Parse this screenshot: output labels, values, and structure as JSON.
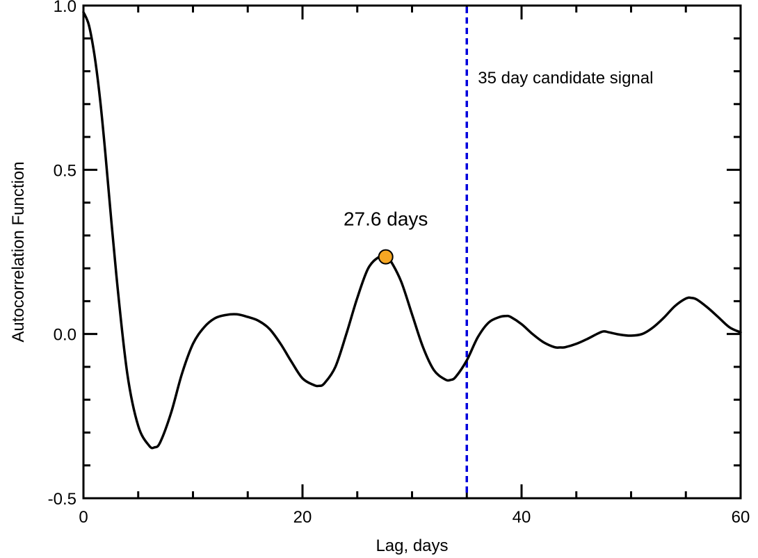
{
  "chart_data": {
    "type": "line",
    "title": "",
    "xlabel": "Lag, days",
    "ylabel": "Autocorrelation Function",
    "xlim": [
      0,
      60
    ],
    "ylim": [
      -0.5,
      1.0
    ],
    "x_ticks": [
      0,
      20,
      40,
      60
    ],
    "x_tick_labels": [
      "0",
      "20",
      "40",
      "60"
    ],
    "y_ticks": [
      -0.5,
      0.0,
      0.5,
      1.0
    ],
    "y_tick_labels": [
      "-0.5",
      "0.0",
      "0.5",
      "1.0"
    ],
    "grid": false,
    "series": [
      {
        "color": "#000000",
        "x": [
          0,
          0.5,
          1,
          1.5,
          2,
          3,
          4,
          5,
          6,
          6.5,
          7,
          8,
          9,
          10,
          11,
          12,
          13,
          14,
          15,
          16,
          17,
          18,
          19,
          20,
          21,
          21.5,
          22,
          23,
          24,
          25,
          26,
          27,
          27.6,
          28,
          29,
          30,
          31,
          32,
          33,
          33.5,
          34,
          35,
          36,
          37,
          38,
          38.6,
          39,
          40,
          41,
          42,
          43,
          43.5,
          44,
          45,
          46,
          47,
          47.5,
          48,
          49,
          50,
          51,
          52,
          53,
          54,
          55,
          55.5,
          56,
          57,
          58,
          59,
          60
        ],
        "y": [
          0.98,
          0.94,
          0.85,
          0.72,
          0.55,
          0.18,
          -0.12,
          -0.28,
          -0.34,
          -0.345,
          -0.33,
          -0.24,
          -0.12,
          -0.03,
          0.02,
          0.048,
          0.058,
          0.06,
          0.052,
          0.04,
          0.015,
          -0.03,
          -0.085,
          -0.135,
          -0.155,
          -0.158,
          -0.15,
          -0.1,
          0.0,
          0.11,
          0.2,
          0.235,
          0.235,
          0.225,
          0.16,
          0.06,
          -0.04,
          -0.11,
          -0.138,
          -0.14,
          -0.13,
          -0.08,
          -0.01,
          0.035,
          0.052,
          0.055,
          0.052,
          0.03,
          0.0,
          -0.025,
          -0.04,
          -0.041,
          -0.04,
          -0.03,
          -0.015,
          0.002,
          0.008,
          0.005,
          -0.002,
          -0.005,
          0.0,
          0.02,
          0.05,
          0.085,
          0.108,
          0.11,
          0.105,
          0.08,
          0.05,
          0.02,
          0.005
        ]
      }
    ],
    "marker": {
      "x": 27.6,
      "y": 0.235,
      "color": "#f5a623",
      "label": "27.6 days"
    },
    "vline": {
      "x": 35,
      "color": "#0000dd",
      "style": "dashed",
      "label": "35 day candidate signal"
    }
  }
}
